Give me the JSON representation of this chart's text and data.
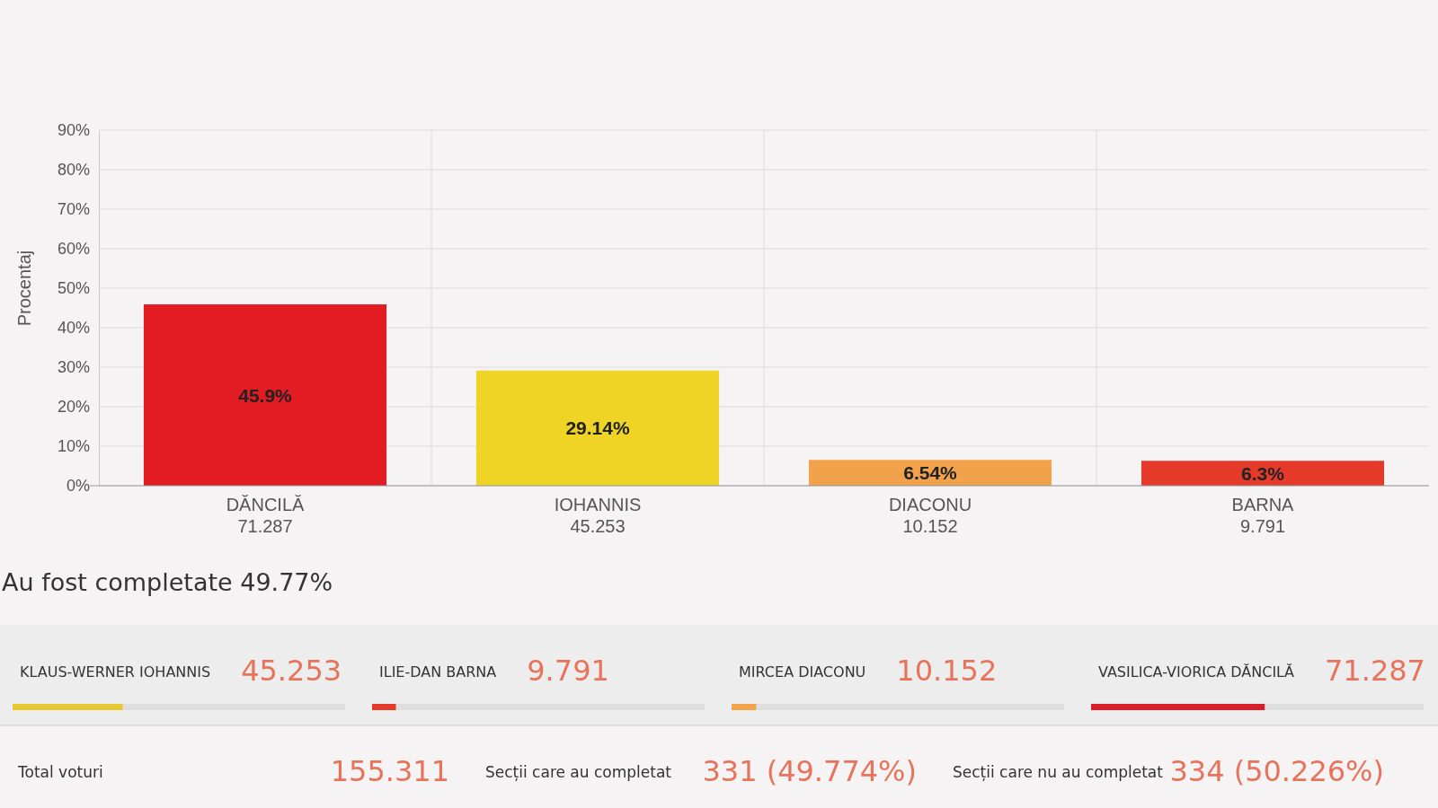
{
  "chart_data": [
    {
      "type": "bar",
      "ylabel": "Procentaj",
      "categories": [
        "DĂNCILĂ\n71.287",
        "IOHANNIS\n45.253",
        "DIACONU\n10.152",
        "BARNA\n9.791"
      ],
      "values": [
        45.9,
        29.14,
        6.54,
        6.3
      ],
      "colors": [
        "#e31b23",
        "#efd325",
        "#f2a24a",
        "#e53a2a"
      ],
      "value_labels": [
        "45.9%",
        "29.14%",
        "6.54%",
        "6.3%"
      ],
      "ylim": [
        0,
        90
      ],
      "yticks": [
        {
          "value": 0,
          "label": "0%"
        },
        {
          "value": 10,
          "label": "10%"
        },
        {
          "value": 20,
          "label": "20%"
        },
        {
          "value": 30,
          "label": "30%"
        },
        {
          "value": 40,
          "label": "40%"
        },
        {
          "value": 50,
          "label": "50%"
        },
        {
          "value": 60,
          "label": "60%"
        },
        {
          "value": 70,
          "label": "70%"
        },
        {
          "value": 80,
          "label": "80%"
        },
        {
          "value": 90,
          "label": "90%"
        }
      ],
      "grid": true
    },
    {
      "type": "other",
      "title": "Au fost completate 49.77%",
      "categories": [
        "KLAUS-WERNER IOHANNIS",
        "ILIE-DAN BARNA",
        "MIRCEA DIACONU",
        "VASILICA-VIORICA DĂNCILĂ"
      ],
      "values": [
        45.253,
        9.791,
        10.152,
        71.287
      ],
      "colors": [
        "#e8c830",
        "#e53a2a",
        "#f2a24a",
        "#d81f2a"
      ],
      "value_labels": [
        "45.253",
        "9.791",
        "10.152",
        "71.287"
      ],
      "annotations": [
        "Total voturi",
        "155.311",
        "Secții care au completat",
        "331 (49.774%)",
        "Secții care nu au completat",
        "334 (50.226%)"
      ]
    }
  ]
}
